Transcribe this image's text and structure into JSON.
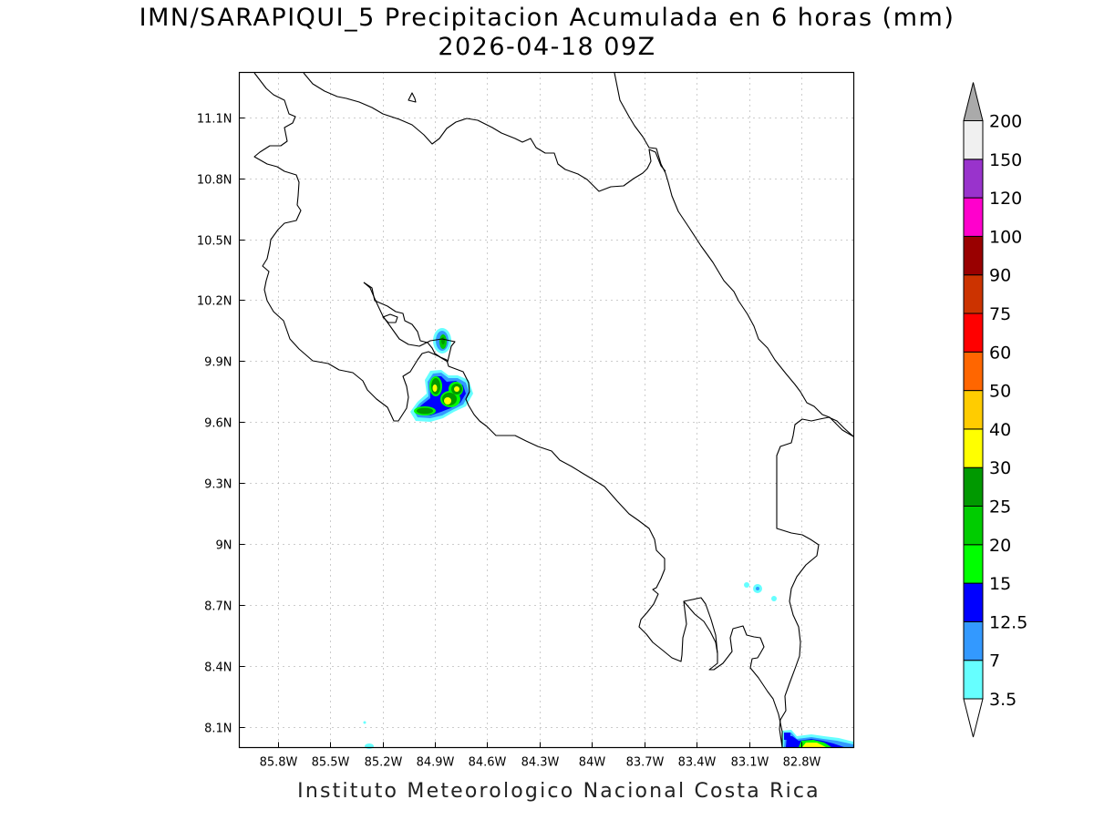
{
  "title_line1": "IMN/SARAPIQUI_5 Precipitacion Acumulada en 6 horas (mm)",
  "title_line2": "2026-04-18 09Z",
  "footer": "Instituto Meteorologico Nacional Costa Rica",
  "map": {
    "lon_range": [
      -86.02,
      -82.5
    ],
    "lat_range": [
      8.0,
      11.32
    ],
    "x_ticks": [
      "85.8W",
      "85.5W",
      "85.2W",
      "84.9W",
      "84.6W",
      "84.3W",
      "84W",
      "83.7W",
      "83.4W",
      "83.1W",
      "82.8W"
    ],
    "x_tick_values": [
      -85.8,
      -85.5,
      -85.2,
      -84.9,
      -84.6,
      -84.3,
      -84.0,
      -83.7,
      -83.4,
      -83.1,
      -82.8
    ],
    "y_ticks": [
      "8.1N",
      "8.4N",
      "8.7N",
      "9N",
      "9.3N",
      "9.6N",
      "9.9N",
      "10.2N",
      "10.5N",
      "10.8N",
      "11.1N"
    ],
    "y_tick_values": [
      8.1,
      8.4,
      8.7,
      9.0,
      9.3,
      9.6,
      9.9,
      10.2,
      10.5,
      10.8,
      11.1
    ],
    "grid": "dotted",
    "colorbar_labels": [
      "3.5",
      "7",
      "12.5",
      "15",
      "20",
      "25",
      "30",
      "40",
      "50",
      "60",
      "75",
      "90",
      "100",
      "120",
      "150",
      "200"
    ],
    "colorbar_colors": [
      "#66ffff",
      "#3399ff",
      "#0000ff",
      "#00ff00",
      "#00cc00",
      "#009900",
      "#ffff00",
      "#ffcc00",
      "#ff6600",
      "#ff0000",
      "#cc3300",
      "#990000",
      "#ff00cc",
      "#9933cc",
      "#f0f0f0"
    ],
    "colorbar_max_arrow_color": "#aaaaaa"
  }
}
